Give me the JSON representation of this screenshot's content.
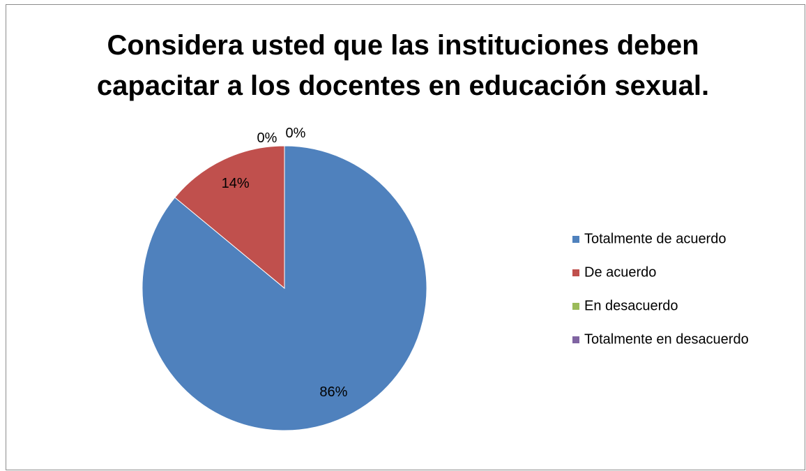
{
  "chart_data": {
    "type": "pie",
    "title": "Considera usted que las instituciones deben\ncapacitar a los docentes en educación sexual.",
    "categories": [
      "Totalmente de acuerdo",
      "De acuerdo",
      "En desacuerdo",
      "Totalmente en desacuerdo"
    ],
    "values": [
      86,
      14,
      0,
      0
    ],
    "value_labels": [
      "86%",
      "14%",
      "0%",
      "0%"
    ],
    "colors": [
      "#4f81bd",
      "#c0504d",
      "#9bbb59",
      "#8064a2"
    ],
    "legend": "right"
  }
}
